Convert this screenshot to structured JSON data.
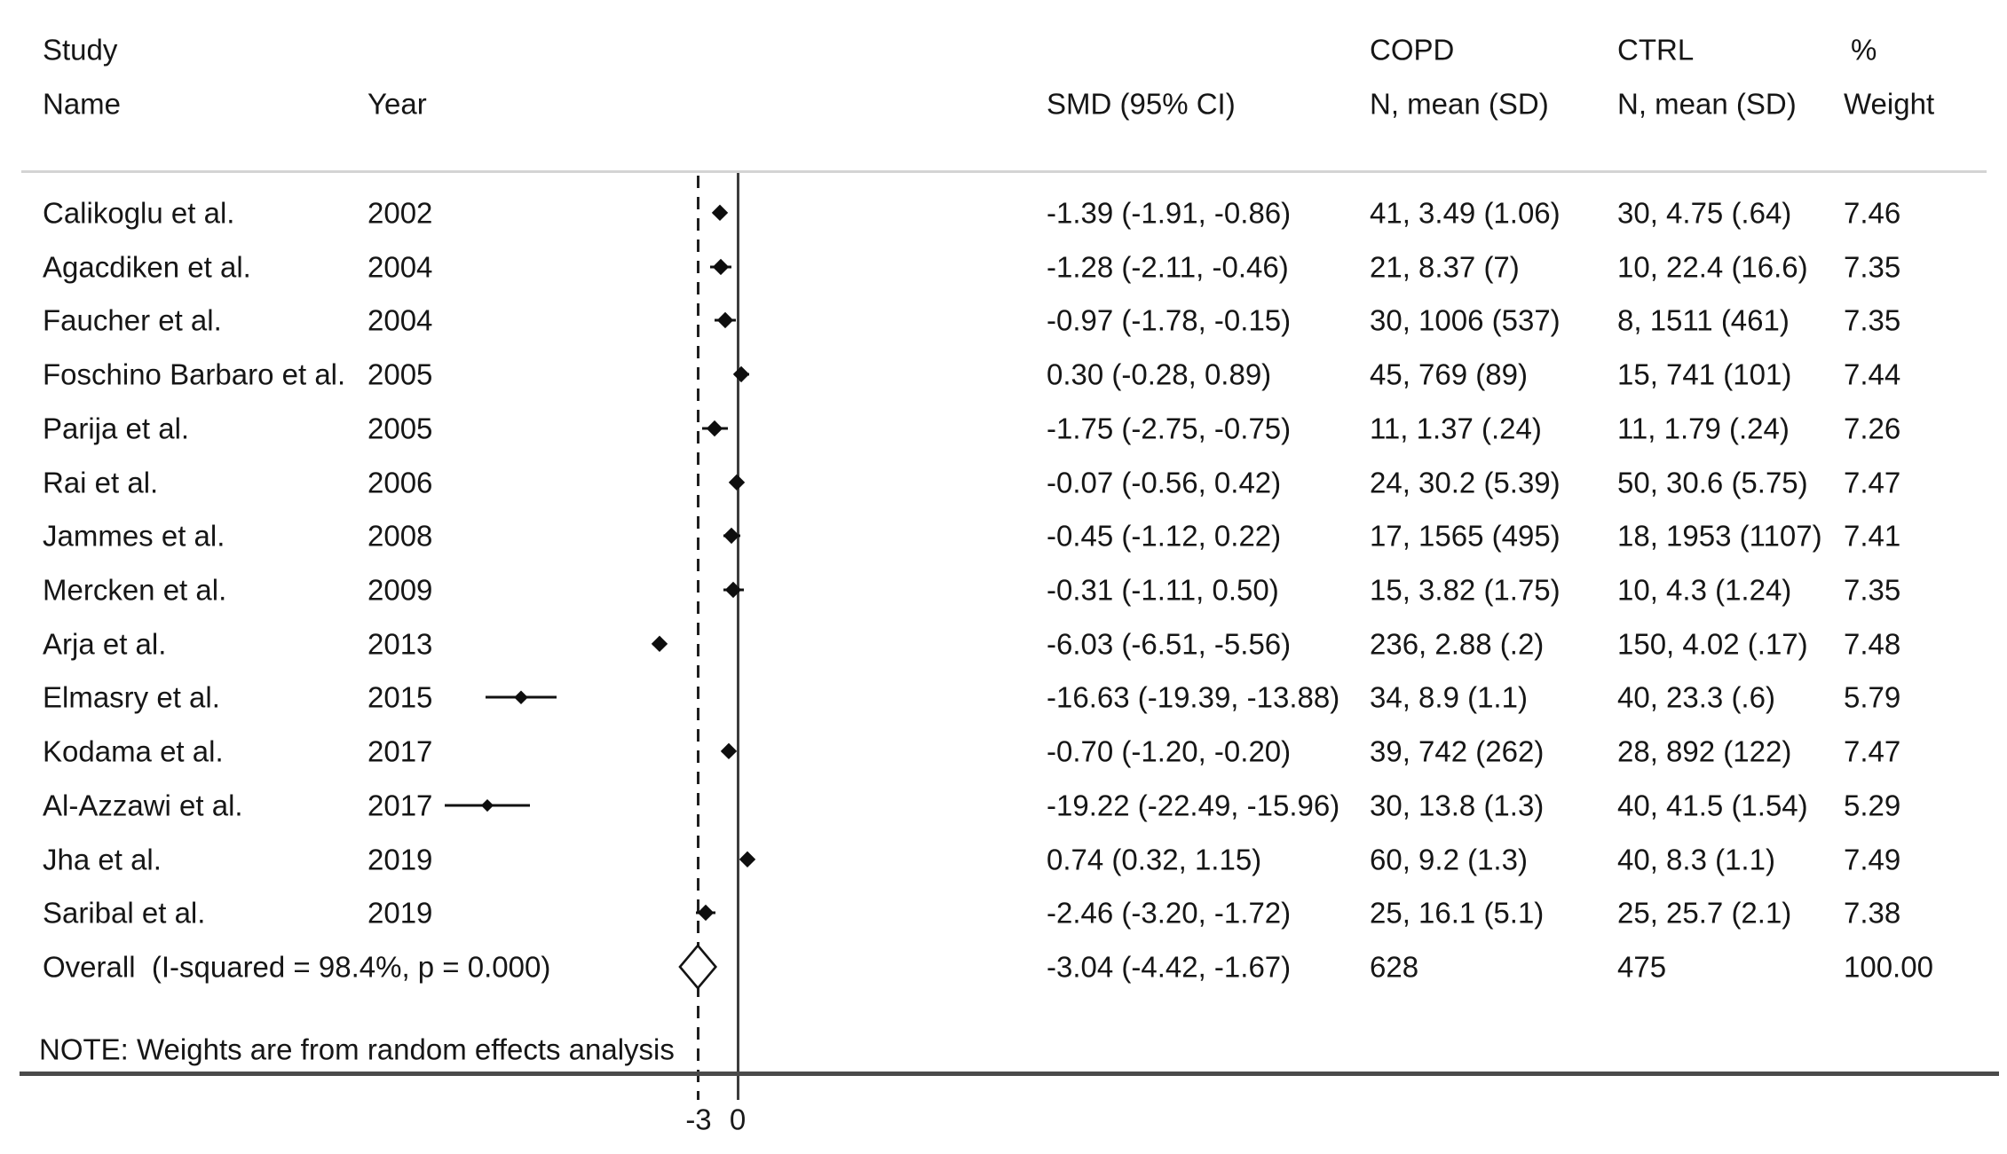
{
  "header": {
    "study_line1": "Study",
    "study_line2": "Name",
    "year": "Year",
    "smd": "SMD (95% CI)",
    "copd_group": "COPD",
    "ctrl_group": "CTRL",
    "copd_sub": "N, mean (SD)",
    "ctrl_sub": "N, mean (SD)",
    "pct": "%",
    "weight": "Weight"
  },
  "note": "NOTE: Weights are from random effects analysis",
  "chart_data": {
    "type": "forest",
    "title": "",
    "x_axis": {
      "ticks": [
        {
          "label": "-3",
          "value": -3
        },
        {
          "label": "0",
          "value": 0
        }
      ],
      "null_line_value": 0,
      "overall_dashed_line_value": -3.04
    },
    "studies": [
      {
        "name": "Calikoglu et al.",
        "year": "2002",
        "smd": -1.39,
        "ci": [
          -1.91,
          -0.86
        ],
        "smd_text": "-1.39 (-1.91, -0.86)",
        "copd": "41, 3.49 (1.06)",
        "ctrl": "30, 4.75 (.64)",
        "weight": "7.46"
      },
      {
        "name": "Agacdiken et al.",
        "year": "2004",
        "smd": -1.28,
        "ci": [
          -2.11,
          -0.46
        ],
        "smd_text": "-1.28 (-2.11, -0.46)",
        "copd": "21, 8.37 (7)",
        "ctrl": "10, 22.4 (16.6)",
        "weight": "7.35"
      },
      {
        "name": "Faucher et al.",
        "year": "2004",
        "smd": -0.97,
        "ci": [
          -1.78,
          -0.15
        ],
        "smd_text": "-0.97 (-1.78, -0.15)",
        "copd": "30, 1006 (537)",
        "ctrl": "8, 1511 (461)",
        "weight": "7.35"
      },
      {
        "name": "Foschino Barbaro et al.",
        "year": "2005",
        "smd": 0.3,
        "ci": [
          -0.28,
          0.89
        ],
        "smd_text": "0.30 (-0.28, 0.89)",
        "copd": "45, 769 (89)",
        "ctrl": "15, 741 (101)",
        "weight": "7.44"
      },
      {
        "name": "Parija et al.",
        "year": "2005",
        "smd": -1.75,
        "ci": [
          -2.75,
          -0.75
        ],
        "smd_text": "-1.75 (-2.75, -0.75)",
        "copd": "11, 1.37 (.24)",
        "ctrl": "11, 1.79 (.24)",
        "weight": "7.26"
      },
      {
        "name": "Rai et al.",
        "year": "2006",
        "smd": -0.07,
        "ci": [
          -0.56,
          0.42
        ],
        "smd_text": "-0.07 (-0.56, 0.42)",
        "copd": "24, 30.2 (5.39)",
        "ctrl": "50, 30.6 (5.75)",
        "weight": "7.47"
      },
      {
        "name": "Jammes et al.",
        "year": "2008",
        "smd": -0.45,
        "ci": [
          -1.12,
          0.22
        ],
        "smd_text": "-0.45 (-1.12, 0.22)",
        "copd": "17, 1565 (495)",
        "ctrl": "18, 1953 (1107)",
        "weight": "7.41"
      },
      {
        "name": "Mercken et al.",
        "year": "2009",
        "smd": -0.31,
        "ci": [
          -1.11,
          0.5
        ],
        "smd_text": "-0.31 (-1.11, 0.50)",
        "copd": "15, 3.82 (1.75)",
        "ctrl": "10, 4.3 (1.24)",
        "weight": "7.35"
      },
      {
        "name": "Arja et al.",
        "year": "2013",
        "smd": -6.03,
        "ci": [
          -6.51,
          -5.56
        ],
        "smd_text": "-6.03 (-6.51, -5.56)",
        "copd": "236, 2.88 (.2)",
        "ctrl": "150, 4.02 (.17)",
        "weight": "7.48"
      },
      {
        "name": "Elmasry et al.",
        "year": "2015",
        "smd": -16.63,
        "ci": [
          -19.39,
          -13.88
        ],
        "smd_text": "-16.63 (-19.39, -13.88)",
        "copd": "34, 8.9 (1.1)",
        "ctrl": "40, 23.3 (.6)",
        "weight": "5.79"
      },
      {
        "name": "Kodama et al.",
        "year": "2017",
        "smd": -0.7,
        "ci": [
          -1.2,
          -0.2
        ],
        "smd_text": "-0.70 (-1.20, -0.20)",
        "copd": "39, 742 (262)",
        "ctrl": "28, 892 (122)",
        "weight": "7.47"
      },
      {
        "name": "Al-Azzawi et al.",
        "year": "2017",
        "smd": -19.22,
        "ci": [
          -22.49,
          -15.96
        ],
        "smd_text": "-19.22 (-22.49, -15.96)",
        "copd": "30, 13.8 (1.3)",
        "ctrl": "40, 41.5 (1.54)",
        "weight": "5.29"
      },
      {
        "name": "Jha et al.",
        "year": "2019",
        "smd": 0.74,
        "ci": [
          0.32,
          1.15
        ],
        "smd_text": "0.74 (0.32, 1.15)",
        "copd": "60, 9.2 (1.3)",
        "ctrl": "40, 8.3 (1.1)",
        "weight": "7.49"
      },
      {
        "name": "Saribal et al.",
        "year": "2019",
        "smd": -2.46,
        "ci": [
          -3.2,
          -1.72
        ],
        "smd_text": "-2.46 (-3.20, -1.72)",
        "copd": "25, 16.1 (5.1)",
        "ctrl": "25, 25.7 (2.1)",
        "weight": "7.38"
      }
    ],
    "overall": {
      "name": "Overall  (I-squared = 98.4%, p = 0.000)",
      "smd": -3.04,
      "ci": [
        -4.42,
        -1.67
      ],
      "smd_text": "-3.04 (-4.42, -1.67)",
      "copd": "628",
      "ctrl": "475",
      "weight": "100.00"
    }
  },
  "colors": {
    "text": "#161616",
    "null_line": "#3d3d3d",
    "dashed_line": "#1f1f1f",
    "marker": "#0e0e0e",
    "rule_top": "#d4d4d4",
    "rule_bottom": "#4a4a4a"
  }
}
